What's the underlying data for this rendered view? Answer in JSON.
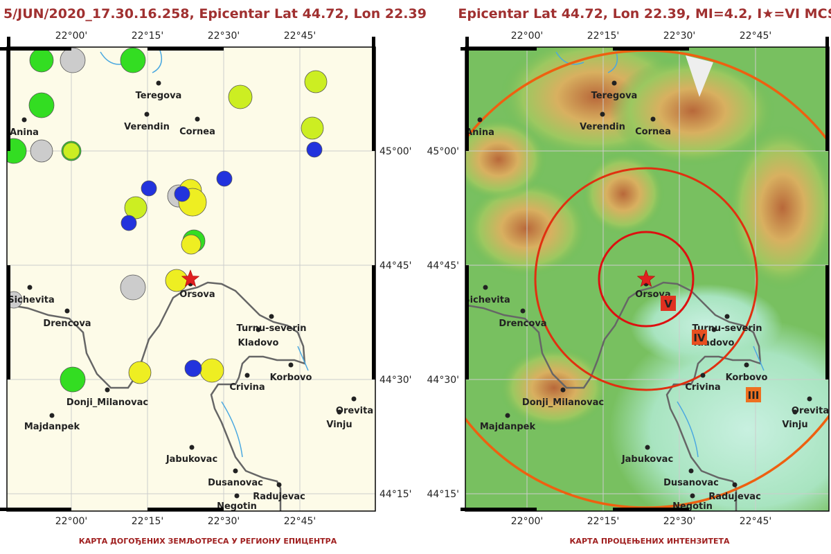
{
  "maps": [
    {
      "title": "5/JUN/2020_17.30.16.258, Epicentar Lat 44.72, Lon 22.39",
      "caption": "КАРТА ДОГОЂЕНИХ ЗЕМЉОТРЕСА У РЕГИОНУ ЕПИЦЕНТРА",
      "x_labels": [
        "22°00'",
        "22°15'",
        "22°30'",
        "22°45'"
      ],
      "y_labels": [
        "45°00'",
        "44°45'",
        "44°30'",
        "44°15'"
      ],
      "cities": [
        "Teregova",
        "Verendin",
        "Cornea",
        "Anina",
        "Sichevita",
        "Drencova",
        "Orsova",
        "Turnu-severin",
        "Kladovo",
        "Korbovo",
        "Crivina",
        "Donji_Milanovac",
        "Majdanpek",
        "Orevita",
        "Vinju",
        "Jabukovac",
        "Dusanovac",
        "Radujevac",
        "Negotin"
      ]
    },
    {
      "title": "Epicentar Lat 44.72, Lon 22.39, MI=4.2, I★=VI MCS",
      "caption": "КАРТА ПРОЦЕЊЕНИХ ИНТЕНЗИТЕТА",
      "x_labels": [
        "22°00'",
        "22°15'",
        "22°30'",
        "22°45'"
      ],
      "y_labels": [
        "45°00'",
        "44°45'",
        "44°30'",
        "44°15'"
      ],
      "cities": [
        "Teregova",
        "Verendin",
        "Cornea",
        "Anina",
        "Sichevita",
        "Drencova",
        "Orsova",
        "Turnu-severin",
        "Kladovo",
        "Korbovo",
        "Crivina",
        "Donji_Milanovac",
        "Majdanpek",
        "Orevita",
        "Vinju",
        "Jabukovac",
        "Dusanovac",
        "Radujevac",
        "Negotin"
      ],
      "intensities": [
        "V",
        "IV",
        "III"
      ]
    }
  ]
}
